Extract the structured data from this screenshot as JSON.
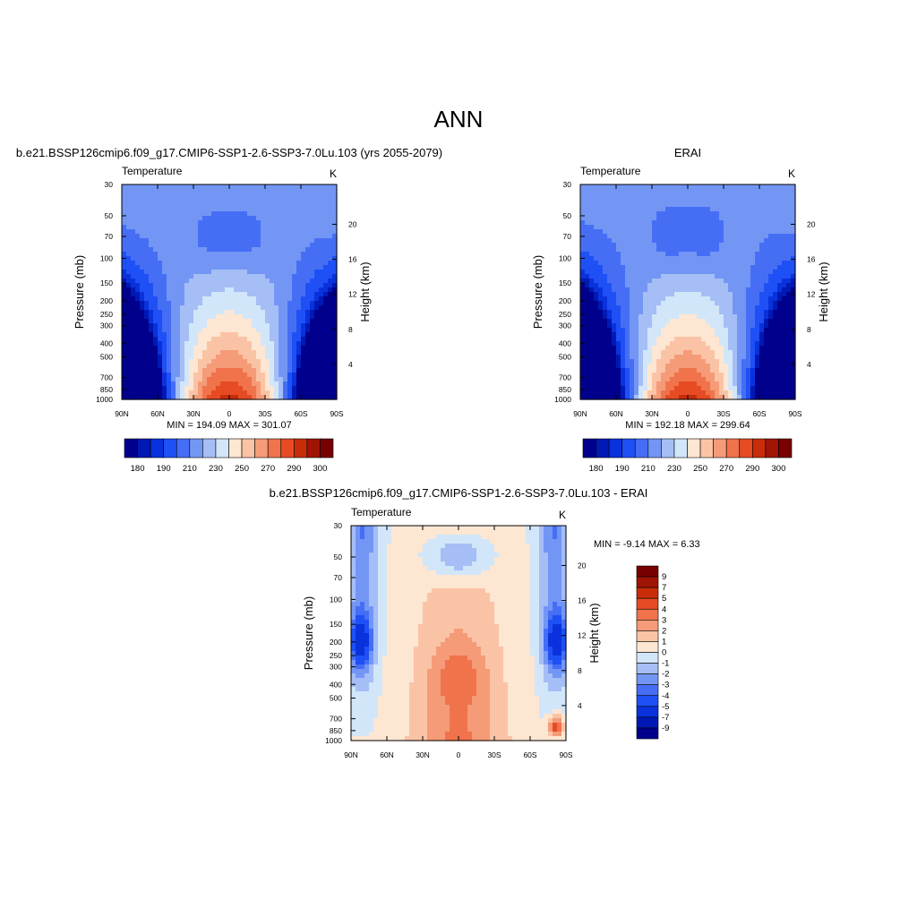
{
  "page_title": "ANN",
  "chart_data": [
    {
      "type": "heatmap",
      "id": "model",
      "header": "b.e21.BSSP126cmip6.f09_g17.CMIP6-SSP1-2.6-SSP3-7.0Lu.103 (yrs 2055-2079)",
      "subtitle_left": "Temperature",
      "subtitle_right": "K",
      "ylabel": "Pressure (mb)",
      "ylabel_right": "Height (km)",
      "x_ticks": [
        "90N",
        "60N",
        "30N",
        "0",
        "30S",
        "60S",
        "90S"
      ],
      "y_ticks": [
        "30",
        "50",
        "70",
        "100",
        "150",
        "200",
        "250",
        "300",
        "400",
        "500",
        "700",
        "850",
        "1000"
      ],
      "y_right_ticks": [
        "20",
        "16",
        "12",
        "8",
        "4"
      ],
      "stats": "MIN = 194.09  MAX = 301.07",
      "min": 194.09,
      "max": 301.07,
      "colorbar_orientation": "horizontal",
      "colorbar_labels": [
        "180",
        "190",
        "210",
        "230",
        "250",
        "270",
        "290",
        "300"
      ],
      "field": "abs"
    },
    {
      "type": "heatmap",
      "id": "obs",
      "header": "ERAI",
      "subtitle_left": "Temperature",
      "subtitle_right": "K",
      "ylabel": "Pressure (mb)",
      "ylabel_right": "Height (km)",
      "x_ticks": [
        "90N",
        "60N",
        "30N",
        "0",
        "30S",
        "60S",
        "90S"
      ],
      "y_ticks": [
        "30",
        "50",
        "70",
        "100",
        "150",
        "200",
        "250",
        "300",
        "400",
        "500",
        "700",
        "850",
        "1000"
      ],
      "y_right_ticks": [
        "20",
        "16",
        "12",
        "8",
        "4"
      ],
      "stats": "MIN = 192.18  MAX = 299.64",
      "min": 192.18,
      "max": 299.64,
      "colorbar_orientation": "horizontal",
      "colorbar_labels": [
        "180",
        "190",
        "210",
        "230",
        "250",
        "270",
        "290",
        "300"
      ],
      "field": "abs"
    },
    {
      "type": "heatmap",
      "id": "diff",
      "header": "b.e21.BSSP126cmip6.f09_g17.CMIP6-SSP1-2.6-SSP3-7.0Lu.103 - ERAI",
      "subtitle_left": "Temperature",
      "subtitle_right": "K",
      "ylabel": "Pressure (mb)",
      "ylabel_right": "Height (km)",
      "x_ticks": [
        "90N",
        "60N",
        "30N",
        "0",
        "30S",
        "60S",
        "90S"
      ],
      "y_ticks": [
        "30",
        "50",
        "70",
        "100",
        "150",
        "200",
        "250",
        "300",
        "400",
        "500",
        "700",
        "850",
        "1000"
      ],
      "y_right_ticks": [
        "20",
        "16",
        "12",
        "8",
        "4"
      ],
      "stats": "MIN =  -9.14  MAX =   6.33",
      "min": -9.14,
      "max": 6.33,
      "colorbar_orientation": "vertical",
      "colorbar_labels": [
        "9",
        "7",
        "5",
        "4",
        "3",
        "2",
        "1",
        "0",
        "-1",
        "-2",
        "-3",
        "-4",
        "-5",
        "-7",
        "-9"
      ],
      "field": "diff"
    }
  ],
  "colors": {
    "abs_palette": [
      "#00008c",
      "#0019b4",
      "#0a32dc",
      "#1e50f5",
      "#466ef5",
      "#7396f5",
      "#a5bef5",
      "#d2e6fa",
      "#fde6d2",
      "#fbc3a5",
      "#f59b78",
      "#f0734b",
      "#e64b23",
      "#c82d0a",
      "#a01405",
      "#780000"
    ],
    "diff_palette": [
      "#00008c",
      "#0019b4",
      "#0a32dc",
      "#1e50f5",
      "#466ef5",
      "#7396f5",
      "#a5bef5",
      "#d2e6fa",
      "#fde6d2",
      "#fbc3a5",
      "#f59b78",
      "#f0734b",
      "#e64b23",
      "#c82d0a",
      "#a01405",
      "#780000"
    ]
  }
}
